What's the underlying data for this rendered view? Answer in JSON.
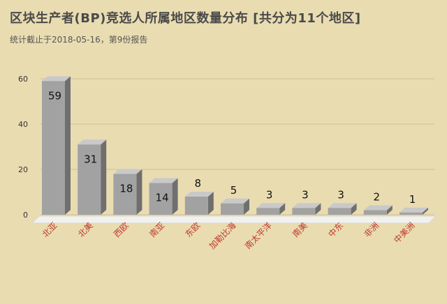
{
  "title": "区块生产者(BP)竞选人所属地区数量分布 [共分为11个地区]",
  "subtitle": "统计截止于2018-05-16，第9份报告",
  "chart_data": {
    "type": "bar",
    "categories": [
      "北亚",
      "北美",
      "西欧",
      "南亚",
      "东欧",
      "加勒比海",
      "南太平洋",
      "南美",
      "中东",
      "非洲",
      "中美洲"
    ],
    "values": [
      59,
      31,
      18,
      14,
      8,
      5,
      3,
      3,
      3,
      2,
      1
    ],
    "yticks": [
      0,
      20,
      40,
      60
    ],
    "ylim": [
      0,
      60
    ],
    "grid": true,
    "bar_color": "#a2a2a2",
    "label_color": "#c0392b"
  }
}
